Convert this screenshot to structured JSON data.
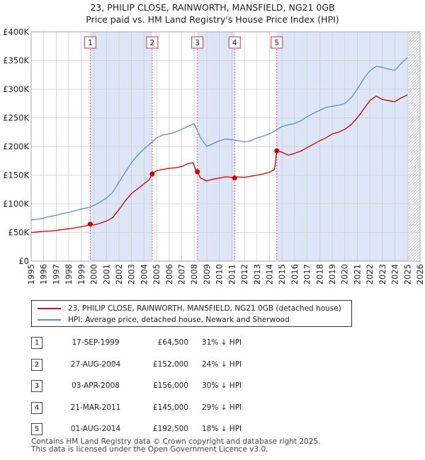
{
  "title_line1": "23, PHILIP CLOSE, RAINWORTH, MANSFIELD, NG21 0GB",
  "title_line2": "Price paid vs. HM Land Registry's House Price Index (HPI)",
  "legend": {
    "property": "23, PHILIP CLOSE, RAINWORTH, MANSFIELD, NG21 0GB (detached house)",
    "hpi": "HPI: Average price, detached house, Newark and Sherwood"
  },
  "colors": {
    "property": "#cc0000",
    "hpi": "#5b8fcf",
    "shade": "#dde6f7",
    "vline": "#e06070",
    "grid": "#cccccc"
  },
  "sales": [
    {
      "num": "1",
      "date": "17-SEP-1999",
      "price": "£64,500",
      "hpi": "31% ↓ HPI"
    },
    {
      "num": "2",
      "date": "27-AUG-2004",
      "price": "£152,000",
      "hpi": "24% ↓ HPI"
    },
    {
      "num": "3",
      "date": "03-APR-2008",
      "price": "£156,000",
      "hpi": "30% ↓ HPI"
    },
    {
      "num": "4",
      "date": "21-MAR-2011",
      "price": "£145,000",
      "hpi": "29% ↓ HPI"
    },
    {
      "num": "5",
      "date": "01-AUG-2014",
      "price": "£192,500",
      "hpi": "18% ↓ HPI"
    }
  ],
  "footer_line1": "Contains HM Land Registry data © Crown copyright and database right 2025.",
  "footer_line2": "This data is licensed under the Open Government Licence v3.0.",
  "chart_data": {
    "type": "line",
    "title": "23, PHILIP CLOSE, RAINWORTH, MANSFIELD, NG21 0GB",
    "subtitle": "Price paid vs. HM Land Registry's House Price Index (HPI)",
    "xlabel": "",
    "ylabel": "",
    "xlim": [
      1995,
      2026
    ],
    "ylim": [
      0,
      400000
    ],
    "x_ticks": [
      1995,
      1996,
      1997,
      1998,
      1999,
      2000,
      2001,
      2002,
      2003,
      2004,
      2005,
      2006,
      2007,
      2008,
      2009,
      2010,
      2011,
      2012,
      2013,
      2014,
      2015,
      2016,
      2017,
      2018,
      2019,
      2020,
      2021,
      2022,
      2023,
      2024,
      2025,
      2026
    ],
    "y_ticks": [
      0,
      50000,
      100000,
      150000,
      200000,
      250000,
      300000,
      350000,
      400000
    ],
    "y_tick_labels": [
      "£0",
      "£50K",
      "£100K",
      "£150K",
      "£200K",
      "£250K",
      "£300K",
      "£350K",
      "£400K"
    ],
    "grid": true,
    "forecast_start": 2025.1,
    "sale_markers": [
      {
        "label": "1",
        "x": 1999.71,
        "y": 64500
      },
      {
        "label": "2",
        "x": 2004.65,
        "y": 152000
      },
      {
        "label": "3",
        "x": 2008.25,
        "y": 156000
      },
      {
        "label": "4",
        "x": 2011.22,
        "y": 145000
      },
      {
        "label": "5",
        "x": 2014.58,
        "y": 192500
      }
    ],
    "shaded_ranges": [
      [
        1999.71,
        2004.65
      ],
      [
        2008.25,
        2011.22
      ],
      [
        2014.58,
        2025.1
      ]
    ],
    "series": [
      {
        "name": "23, PHILIP CLOSE, RAINWORTH, MANSFIELD, NG21 0GB (detached house)",
        "color": "#cc0000",
        "x": [
          1995.0,
          1995.5,
          1996.0,
          1996.5,
          1997.0,
          1997.5,
          1998.0,
          1998.5,
          1999.0,
          1999.5,
          1999.71,
          2000.0,
          2000.5,
          2001.0,
          2001.5,
          2002.0,
          2002.5,
          2003.0,
          2003.5,
          2004.0,
          2004.4,
          2004.65,
          2005.0,
          2005.5,
          2006.0,
          2006.5,
          2007.0,
          2007.5,
          2007.9,
          2008.1,
          2008.25,
          2008.5,
          2009.0,
          2009.5,
          2010.0,
          2010.5,
          2011.0,
          2011.22,
          2011.5,
          2012.0,
          2012.5,
          2013.0,
          2013.5,
          2014.0,
          2014.4,
          2014.58,
          2015.0,
          2015.5,
          2016.0,
          2016.5,
          2017.0,
          2017.5,
          2018.0,
          2018.5,
          2019.0,
          2019.5,
          2020.0,
          2020.5,
          2021.0,
          2021.5,
          2022.0,
          2022.5,
          2023.0,
          2023.5,
          2024.0,
          2024.5,
          2025.0
        ],
        "values": [
          50000,
          51000,
          52000,
          52500,
          53500,
          55000,
          56500,
          58000,
          60000,
          62500,
          64500,
          63000,
          66000,
          70000,
          76000,
          90000,
          105000,
          118000,
          126000,
          135000,
          142000,
          152000,
          158000,
          160000,
          162000,
          163000,
          165000,
          170000,
          172000,
          160000,
          156000,
          145000,
          140000,
          143000,
          145000,
          147000,
          146000,
          145000,
          147000,
          146000,
          148000,
          150000,
          152000,
          155000,
          160000,
          192500,
          190000,
          185000,
          188000,
          192000,
          198000,
          204000,
          210000,
          215000,
          222000,
          225000,
          230000,
          238000,
          250000,
          265000,
          280000,
          288000,
          282000,
          280000,
          278000,
          285000,
          290000
        ]
      },
      {
        "name": "HPI: Average price, detached house, Newark and Sherwood",
        "color": "#5b8fcf",
        "x": [
          1995.0,
          1995.5,
          1996.0,
          1996.5,
          1997.0,
          1997.5,
          1998.0,
          1998.5,
          1999.0,
          1999.5,
          2000.0,
          2000.5,
          2001.0,
          2001.5,
          2002.0,
          2002.5,
          2003.0,
          2003.5,
          2004.0,
          2004.5,
          2005.0,
          2005.5,
          2006.0,
          2006.5,
          2007.0,
          2007.5,
          2008.0,
          2008.5,
          2009.0,
          2009.5,
          2010.0,
          2010.5,
          2011.0,
          2011.5,
          2012.0,
          2012.5,
          2013.0,
          2013.5,
          2014.0,
          2014.5,
          2015.0,
          2015.5,
          2016.0,
          2016.5,
          2017.0,
          2017.5,
          2018.0,
          2018.5,
          2019.0,
          2019.5,
          2020.0,
          2020.5,
          2021.0,
          2021.5,
          2022.0,
          2022.5,
          2023.0,
          2023.5,
          2024.0,
          2024.5,
          2025.0
        ],
        "values": [
          72000,
          73000,
          75000,
          78000,
          80000,
          83000,
          85000,
          88000,
          91000,
          93000,
          97000,
          103000,
          110000,
          120000,
          138000,
          155000,
          172000,
          185000,
          196000,
          205000,
          215000,
          220000,
          222000,
          225000,
          230000,
          235000,
          240000,
          215000,
          200000,
          205000,
          210000,
          213000,
          212000,
          210000,
          208000,
          210000,
          215000,
          218000,
          222000,
          228000,
          235000,
          238000,
          240000,
          245000,
          252000,
          258000,
          263000,
          268000,
          270000,
          272000,
          275000,
          285000,
          300000,
          318000,
          332000,
          340000,
          338000,
          335000,
          333000,
          345000,
          355000
        ]
      }
    ]
  }
}
